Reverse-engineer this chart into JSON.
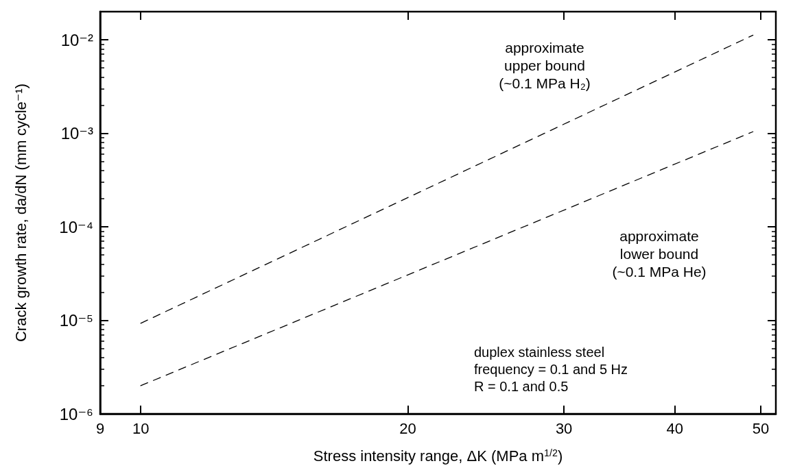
{
  "chart_data": {
    "type": "line",
    "xlabel": "Stress intensity range, ΔK (MPa m$^{1/2}$)",
    "ylabel": "Crack growth rate, da/dN (mm cycle⁻¹)",
    "log": "xy",
    "xlim": [
      9,
      52
    ],
    "xticks": [
      9,
      10,
      20,
      30,
      40,
      50
    ],
    "ylim": [
      1e-06,
      0.02
    ],
    "yticks": [
      {
        "value": 1e-06,
        "label": "10⁻⁶"
      },
      {
        "value": 2e-06,
        "label": null
      },
      {
        "value": 3e-06,
        "label": null
      },
      {
        "value": 4e-06,
        "label": null
      },
      {
        "value": 5e-06,
        "label": null
      },
      {
        "value": 6e-06,
        "label": null
      },
      {
        "value": 7e-06,
        "label": null
      },
      {
        "value": 8e-06,
        "label": null
      },
      {
        "value": 9e-06,
        "label": null
      },
      {
        "value": 1e-05,
        "label": "10⁻⁵"
      },
      {
        "value": 2e-05,
        "label": null
      },
      {
        "value": 3e-05,
        "label": null
      },
      {
        "value": 4e-05,
        "label": null
      },
      {
        "value": 5e-05,
        "label": null
      },
      {
        "value": 6e-05,
        "label": null
      },
      {
        "value": 7e-05,
        "label": null
      },
      {
        "value": 8e-05,
        "label": null
      },
      {
        "value": 9e-05,
        "label": null
      },
      {
        "value": 0.0001,
        "label": "10⁻⁴"
      },
      {
        "value": 0.0002,
        "label": null
      },
      {
        "value": 0.0003,
        "label": null
      },
      {
        "value": 0.0004,
        "label": null
      },
      {
        "value": 0.0005,
        "label": null
      },
      {
        "value": 0.0006,
        "label": null
      },
      {
        "value": 0.0007,
        "label": null
      },
      {
        "value": 0.0008,
        "label": null
      },
      {
        "value": 0.0009,
        "label": null
      },
      {
        "value": 0.001,
        "label": "10⁻³"
      },
      {
        "value": 0.002,
        "label": null
      },
      {
        "value": 0.003,
        "label": null
      },
      {
        "value": 0.004,
        "label": null
      },
      {
        "value": 0.005,
        "label": null
      },
      {
        "value": 0.006,
        "label": null
      },
      {
        "value": 0.007,
        "label": null
      },
      {
        "value": 0.008,
        "label": null
      },
      {
        "value": 0.009,
        "label": null
      },
      {
        "value": 0.01,
        "label": "10⁻²"
      }
    ],
    "grid": false,
    "marker": "none",
    "line_style": "dashed",
    "x": [
      10,
      49
    ],
    "series": [
      {
        "color": "#000000",
        "values": [
          9.3e-06,
          0.0112
        ]
      },
      {
        "color": "#000000",
        "values": [
          2e-06,
          0.00104
        ]
      }
    ],
    "annotations": [
      "approximate\nupper bound\n(~0.1 MPa H₂)",
      "approximate\nlower bound\n(~0.1 MPa He)",
      "duplex stainless steel",
      "frequency = 0.1 and 5 Hz",
      "R = 0.1 and 0.5"
    ]
  }
}
